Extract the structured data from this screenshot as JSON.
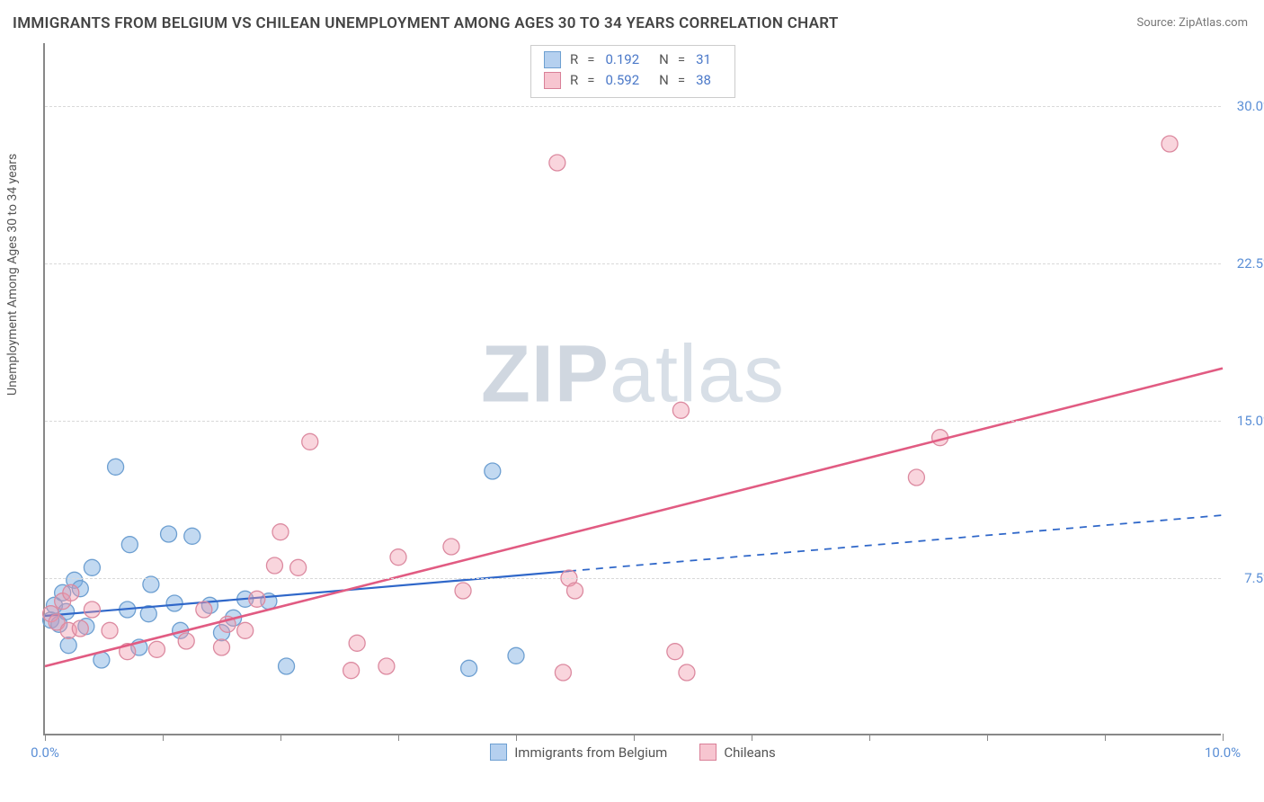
{
  "title": "IMMIGRANTS FROM BELGIUM VS CHILEAN UNEMPLOYMENT AMONG AGES 30 TO 34 YEARS CORRELATION CHART",
  "source": "Source: ZipAtlas.com",
  "y_axis_label": "Unemployment Among Ages 30 to 34 years",
  "watermark_bold": "ZIP",
  "watermark_light": "atlas",
  "chart": {
    "type": "scatter",
    "xlim": [
      0,
      10
    ],
    "ylim": [
      0,
      33
    ],
    "x_ticks": [
      0,
      1,
      2,
      3,
      4,
      5,
      6,
      7,
      8,
      9,
      10
    ],
    "x_tick_labels": {
      "0": "0.0%",
      "10": "10.0%"
    },
    "y_gridlines": [
      7.5,
      15.0,
      22.5,
      30.0
    ],
    "y_tick_labels": [
      "7.5%",
      "15.0%",
      "22.5%",
      "30.0%"
    ],
    "background_color": "#ffffff",
    "grid_color": "#d9d9d9",
    "axis_color": "#888888",
    "tick_label_color": "#5b8fd6",
    "marker_radius": 9,
    "series": [
      {
        "name": "Immigrants from Belgium",
        "color_fill": "rgba(120,170,225,0.45)",
        "color_stroke": "#6d9fd1",
        "R": "0.192",
        "N": "31",
        "trend": {
          "x1": 0,
          "y1": 5.7,
          "x2": 10,
          "y2": 10.5,
          "solid_until_x": 4.45,
          "color": "#2f67c9",
          "width": 2.2
        },
        "points": [
          [
            0.05,
            5.5
          ],
          [
            0.08,
            6.2
          ],
          [
            0.12,
            5.3
          ],
          [
            0.15,
            6.8
          ],
          [
            0.18,
            5.9
          ],
          [
            0.2,
            4.3
          ],
          [
            0.25,
            7.4
          ],
          [
            0.3,
            7.0
          ],
          [
            0.35,
            5.2
          ],
          [
            0.4,
            8.0
          ],
          [
            0.48,
            3.6
          ],
          [
            0.6,
            12.8
          ],
          [
            0.7,
            6.0
          ],
          [
            0.72,
            9.1
          ],
          [
            0.8,
            4.2
          ],
          [
            0.88,
            5.8
          ],
          [
            0.9,
            7.2
          ],
          [
            1.05,
            9.6
          ],
          [
            1.1,
            6.3
          ],
          [
            1.15,
            5.0
          ],
          [
            1.25,
            9.5
          ],
          [
            1.4,
            6.2
          ],
          [
            1.5,
            4.9
          ],
          [
            1.6,
            5.6
          ],
          [
            1.7,
            6.5
          ],
          [
            1.9,
            6.4
          ],
          [
            2.05,
            3.3
          ],
          [
            3.6,
            3.2
          ],
          [
            3.8,
            12.6
          ],
          [
            4.0,
            3.8
          ]
        ]
      },
      {
        "name": "Chileans",
        "color_fill": "rgba(240,150,170,0.40)",
        "color_stroke": "#dc8aa0",
        "R": "0.592",
        "N": "38",
        "trend": {
          "x1": 0,
          "y1": 3.3,
          "x2": 10,
          "y2": 17.5,
          "solid_until_x": 10,
          "color": "#e15b82",
          "width": 2.6
        },
        "points": [
          [
            0.05,
            5.8
          ],
          [
            0.1,
            5.4
          ],
          [
            0.15,
            6.4
          ],
          [
            0.2,
            5.0
          ],
          [
            0.22,
            6.8
          ],
          [
            0.3,
            5.1
          ],
          [
            0.4,
            6.0
          ],
          [
            0.55,
            5.0
          ],
          [
            0.7,
            4.0
          ],
          [
            0.95,
            4.1
          ],
          [
            1.2,
            4.5
          ],
          [
            1.35,
            6.0
          ],
          [
            1.5,
            4.2
          ],
          [
            1.55,
            5.3
          ],
          [
            1.7,
            5.0
          ],
          [
            1.8,
            6.5
          ],
          [
            1.95,
            8.1
          ],
          [
            2.0,
            9.7
          ],
          [
            2.15,
            8.0
          ],
          [
            2.25,
            14.0
          ],
          [
            2.6,
            3.1
          ],
          [
            2.65,
            4.4
          ],
          [
            2.9,
            3.3
          ],
          [
            3.0,
            8.5
          ],
          [
            3.45,
            9.0
          ],
          [
            3.55,
            6.9
          ],
          [
            4.35,
            27.3
          ],
          [
            4.4,
            3.0
          ],
          [
            4.45,
            7.5
          ],
          [
            4.5,
            6.9
          ],
          [
            5.35,
            4.0
          ],
          [
            5.4,
            15.5
          ],
          [
            5.45,
            3.0
          ],
          [
            7.4,
            12.3
          ],
          [
            7.6,
            14.2
          ],
          [
            9.55,
            28.2
          ]
        ]
      }
    ],
    "stats_box": {
      "rows": [
        {
          "swatch": "blue",
          "R_label": "R",
          "R_eq": "=",
          "R_val": "0.192",
          "N_label": "N",
          "N_eq": "=",
          "N_val": "31"
        },
        {
          "swatch": "pink",
          "R_label": "R",
          "R_eq": "=",
          "R_val": "0.592",
          "N_label": "N",
          "N_eq": "=",
          "N_val": "38"
        }
      ]
    },
    "x_legend": [
      {
        "swatch": "blue",
        "label": "Immigrants from Belgium"
      },
      {
        "swatch": "pink",
        "label": "Chileans"
      }
    ]
  }
}
